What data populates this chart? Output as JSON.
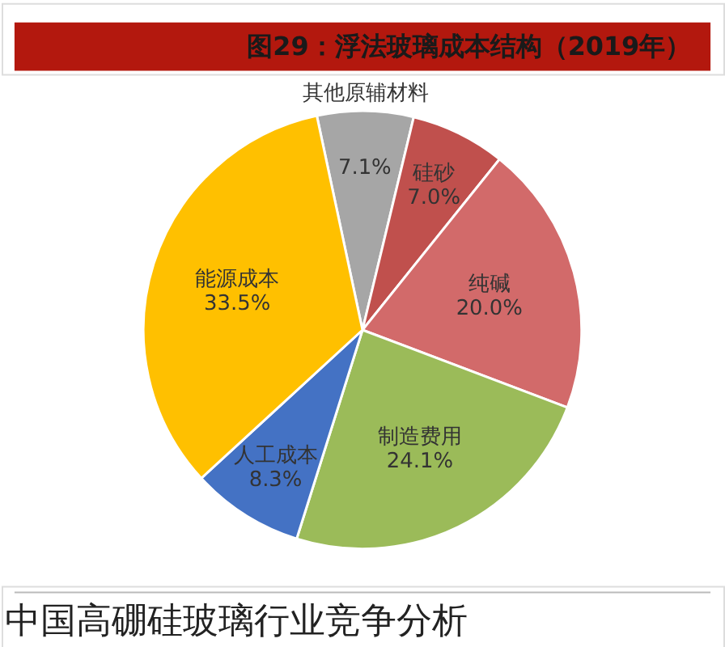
{
  "chart_data": {
    "type": "pie",
    "title": "图29：浮法玻璃成本结构（2019年）",
    "categories": [
      "其他原辅材料",
      "硅砂",
      "纯碱",
      "制造费用",
      "人工成本",
      "能源成本"
    ],
    "values": [
      7.1,
      7.0,
      20.0,
      24.1,
      8.3,
      33.5
    ],
    "value_labels": [
      "7.1%",
      "7.0%",
      "20.0%",
      "24.1%",
      "8.3%",
      "33.5%"
    ],
    "colors": [
      "#a6a6a6",
      "#c0504d",
      "#d26a6a",
      "#9bbb59",
      "#4472c4",
      "#ffc000"
    ],
    "annotations": [
      "中国高硼硅玻璃行业竞争分析"
    ]
  }
}
